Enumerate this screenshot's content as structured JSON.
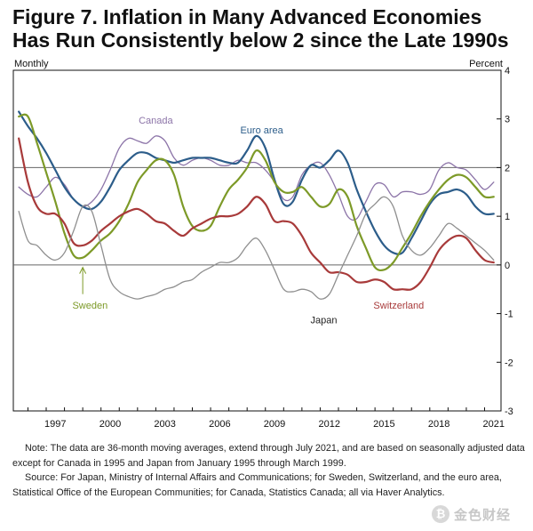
{
  "title_lines": [
    "Figure 7. Inflation in Many Advanced Economies",
    "Has Run Consistently below 2 since the Late 1990s"
  ],
  "chart_data": {
    "type": "line",
    "title": "Figure 7. Inflation in Many Advanced Economies Has Run Consistently below 2 since the Late 1990s",
    "left_unit_label": "Monthly",
    "right_unit_label": "Percent",
    "xlim": [
      1995.2,
      2021.9
    ],
    "ylim": [
      -3,
      4
    ],
    "y_ticks": [
      -3,
      -2,
      -1,
      0,
      1,
      2,
      3,
      4
    ],
    "x_ticks": [
      "1997",
      "2000",
      "2003",
      "2006",
      "2009",
      "2012",
      "2015",
      "2018",
      "2021"
    ],
    "x_tick_values": [
      1997,
      2000,
      2003,
      2006,
      2009,
      2012,
      2015,
      2018,
      2021
    ],
    "reference_lines": [
      2,
      0
    ],
    "series": [
      {
        "name": "Canada",
        "color": "#8c74a8",
        "points": [
          [
            1995.5,
            1.6
          ],
          [
            1996,
            1.45
          ],
          [
            1996.5,
            1.4
          ],
          [
            1997,
            1.6
          ],
          [
            1997.5,
            1.8
          ],
          [
            1998,
            1.65
          ],
          [
            1998.5,
            1.35
          ],
          [
            1999,
            1.2
          ],
          [
            1999.5,
            1.3
          ],
          [
            2000,
            1.55
          ],
          [
            2000.5,
            1.95
          ],
          [
            2001,
            2.4
          ],
          [
            2001.5,
            2.6
          ],
          [
            2002,
            2.55
          ],
          [
            2002.5,
            2.5
          ],
          [
            2003,
            2.65
          ],
          [
            2003.5,
            2.55
          ],
          [
            2004,
            2.2
          ],
          [
            2004.5,
            2.05
          ],
          [
            2005,
            2.15
          ],
          [
            2005.5,
            2.2
          ],
          [
            2006,
            2.15
          ],
          [
            2006.5,
            2.05
          ],
          [
            2007,
            2.05
          ],
          [
            2007.5,
            2.15
          ],
          [
            2008,
            2.1
          ],
          [
            2008.5,
            2.1
          ],
          [
            2009,
            1.95
          ],
          [
            2009.5,
            1.7
          ],
          [
            2010,
            1.35
          ],
          [
            2010.5,
            1.4
          ],
          [
            2011,
            1.85
          ],
          [
            2011.5,
            2.05
          ],
          [
            2012,
            2.1
          ],
          [
            2012.5,
            1.85
          ],
          [
            2013,
            1.45
          ],
          [
            2013.5,
            1.0
          ],
          [
            2014,
            0.95
          ],
          [
            2014.5,
            1.3
          ],
          [
            2015,
            1.65
          ],
          [
            2015.5,
            1.65
          ],
          [
            2016,
            1.4
          ],
          [
            2016.5,
            1.5
          ],
          [
            2017,
            1.5
          ],
          [
            2017.5,
            1.45
          ],
          [
            2018,
            1.55
          ],
          [
            2018.5,
            1.95
          ],
          [
            2019,
            2.1
          ],
          [
            2019.5,
            2.0
          ],
          [
            2020,
            1.95
          ],
          [
            2020.5,
            1.75
          ],
          [
            2021,
            1.55
          ],
          [
            2021.5,
            1.7
          ]
        ]
      },
      {
        "name": "Euro area",
        "color": "#2c5d8a",
        "points": [
          [
            1995.5,
            3.15
          ],
          [
            1996,
            2.85
          ],
          [
            1996.5,
            2.6
          ],
          [
            1997,
            2.3
          ],
          [
            1997.5,
            1.95
          ],
          [
            1998,
            1.6
          ],
          [
            1998.5,
            1.35
          ],
          [
            1999,
            1.2
          ],
          [
            1999.5,
            1.15
          ],
          [
            2000,
            1.3
          ],
          [
            2000.5,
            1.6
          ],
          [
            2001,
            1.95
          ],
          [
            2001.5,
            2.15
          ],
          [
            2002,
            2.3
          ],
          [
            2002.5,
            2.3
          ],
          [
            2003,
            2.2
          ],
          [
            2003.5,
            2.15
          ],
          [
            2004,
            2.1
          ],
          [
            2004.5,
            2.15
          ],
          [
            2005,
            2.2
          ],
          [
            2005.5,
            2.2
          ],
          [
            2006,
            2.2
          ],
          [
            2006.5,
            2.15
          ],
          [
            2007,
            2.1
          ],
          [
            2007.5,
            2.1
          ],
          [
            2008,
            2.35
          ],
          [
            2008.5,
            2.65
          ],
          [
            2009,
            2.4
          ],
          [
            2009.5,
            1.75
          ],
          [
            2010,
            1.25
          ],
          [
            2010.5,
            1.3
          ],
          [
            2011,
            1.75
          ],
          [
            2011.5,
            2.05
          ],
          [
            2012,
            2.0
          ],
          [
            2012.5,
            2.15
          ],
          [
            2013,
            2.35
          ],
          [
            2013.5,
            2.1
          ],
          [
            2014,
            1.55
          ],
          [
            2014.5,
            1.1
          ],
          [
            2015,
            0.7
          ],
          [
            2015.5,
            0.4
          ],
          [
            2016,
            0.25
          ],
          [
            2016.5,
            0.25
          ],
          [
            2017,
            0.55
          ],
          [
            2017.5,
            0.9
          ],
          [
            2018,
            1.25
          ],
          [
            2018.5,
            1.45
          ],
          [
            2019,
            1.5
          ],
          [
            2019.5,
            1.55
          ],
          [
            2020,
            1.45
          ],
          [
            2020.5,
            1.2
          ],
          [
            2021,
            1.05
          ],
          [
            2021.5,
            1.05
          ]
        ]
      },
      {
        "name": "Sweden",
        "color": "#7d9a28",
        "points": [
          [
            1995.5,
            3.05
          ],
          [
            1996,
            3.05
          ],
          [
            1996.5,
            2.5
          ],
          [
            1997,
            1.9
          ],
          [
            1997.5,
            1.3
          ],
          [
            1998,
            0.65
          ],
          [
            1998.5,
            0.2
          ],
          [
            1999,
            0.15
          ],
          [
            1999.5,
            0.3
          ],
          [
            2000,
            0.5
          ],
          [
            2000.5,
            0.65
          ],
          [
            2001,
            0.9
          ],
          [
            2001.5,
            1.25
          ],
          [
            2002,
            1.7
          ],
          [
            2002.5,
            1.95
          ],
          [
            2003,
            2.15
          ],
          [
            2003.5,
            2.15
          ],
          [
            2004,
            1.85
          ],
          [
            2004.5,
            1.2
          ],
          [
            2005,
            0.8
          ],
          [
            2005.5,
            0.7
          ],
          [
            2006,
            0.8
          ],
          [
            2006.5,
            1.2
          ],
          [
            2007,
            1.55
          ],
          [
            2007.5,
            1.75
          ],
          [
            2008,
            2.0
          ],
          [
            2008.5,
            2.35
          ],
          [
            2009,
            2.15
          ],
          [
            2009.5,
            1.7
          ],
          [
            2010,
            1.5
          ],
          [
            2010.5,
            1.5
          ],
          [
            2011,
            1.6
          ],
          [
            2011.5,
            1.4
          ],
          [
            2012,
            1.2
          ],
          [
            2012.5,
            1.25
          ],
          [
            2013,
            1.55
          ],
          [
            2013.5,
            1.4
          ],
          [
            2014,
            0.8
          ],
          [
            2014.5,
            0.35
          ],
          [
            2015,
            -0.05
          ],
          [
            2015.5,
            -0.1
          ],
          [
            2016,
            0.05
          ],
          [
            2016.5,
            0.35
          ],
          [
            2017,
            0.65
          ],
          [
            2017.5,
            1.0
          ],
          [
            2018,
            1.3
          ],
          [
            2018.5,
            1.55
          ],
          [
            2019,
            1.75
          ],
          [
            2019.5,
            1.85
          ],
          [
            2020,
            1.8
          ],
          [
            2020.5,
            1.6
          ],
          [
            2021,
            1.4
          ],
          [
            2021.5,
            1.4
          ]
        ]
      },
      {
        "name": "Switzerland",
        "color": "#a83a3a",
        "points": [
          [
            1995.5,
            2.6
          ],
          [
            1996,
            1.7
          ],
          [
            1996.5,
            1.2
          ],
          [
            1997,
            1.05
          ],
          [
            1997.5,
            1.05
          ],
          [
            1998,
            0.85
          ],
          [
            1998.5,
            0.45
          ],
          [
            1999,
            0.4
          ],
          [
            1999.5,
            0.5
          ],
          [
            2000,
            0.7
          ],
          [
            2000.5,
            0.85
          ],
          [
            2001,
            1.0
          ],
          [
            2001.5,
            1.1
          ],
          [
            2002,
            1.15
          ],
          [
            2002.5,
            1.05
          ],
          [
            2003,
            0.9
          ],
          [
            2003.5,
            0.85
          ],
          [
            2004,
            0.7
          ],
          [
            2004.5,
            0.6
          ],
          [
            2005,
            0.75
          ],
          [
            2005.5,
            0.85
          ],
          [
            2006,
            0.95
          ],
          [
            2006.5,
            1.0
          ],
          [
            2007,
            1.0
          ],
          [
            2007.5,
            1.05
          ],
          [
            2008,
            1.2
          ],
          [
            2008.5,
            1.4
          ],
          [
            2009,
            1.25
          ],
          [
            2009.5,
            0.9
          ],
          [
            2010,
            0.9
          ],
          [
            2010.5,
            0.85
          ],
          [
            2011,
            0.6
          ],
          [
            2011.5,
            0.25
          ],
          [
            2012,
            0.05
          ],
          [
            2012.5,
            -0.15
          ],
          [
            2013,
            -0.15
          ],
          [
            2013.5,
            -0.2
          ],
          [
            2014,
            -0.35
          ],
          [
            2014.5,
            -0.35
          ],
          [
            2015,
            -0.3
          ],
          [
            2015.5,
            -0.35
          ],
          [
            2016,
            -0.5
          ],
          [
            2016.5,
            -0.5
          ],
          [
            2017,
            -0.5
          ],
          [
            2017.5,
            -0.35
          ],
          [
            2018,
            -0.05
          ],
          [
            2018.5,
            0.3
          ],
          [
            2019,
            0.5
          ],
          [
            2019.5,
            0.6
          ],
          [
            2020,
            0.55
          ],
          [
            2020.5,
            0.3
          ],
          [
            2021,
            0.1
          ],
          [
            2021.5,
            0.05
          ]
        ]
      },
      {
        "name": "Japan",
        "color": "#8f8f8f",
        "points": [
          [
            1995.5,
            1.1
          ],
          [
            1996,
            0.5
          ],
          [
            1996.5,
            0.4
          ],
          [
            1997,
            0.2
          ],
          [
            1997.5,
            0.1
          ],
          [
            1998,
            0.25
          ],
          [
            1998.5,
            0.7
          ],
          [
            1999,
            1.2
          ],
          [
            1999.5,
            1.1
          ],
          [
            2000,
            0.4
          ],
          [
            2000.5,
            -0.3
          ],
          [
            2001,
            -0.55
          ],
          [
            2001.5,
            -0.65
          ],
          [
            2002,
            -0.7
          ],
          [
            2002.5,
            -0.65
          ],
          [
            2003,
            -0.6
          ],
          [
            2003.5,
            -0.5
          ],
          [
            2004,
            -0.45
          ],
          [
            2004.5,
            -0.35
          ],
          [
            2005,
            -0.3
          ],
          [
            2005.5,
            -0.15
          ],
          [
            2006,
            -0.05
          ],
          [
            2006.5,
            0.05
          ],
          [
            2007,
            0.05
          ],
          [
            2007.5,
            0.15
          ],
          [
            2008,
            0.4
          ],
          [
            2008.5,
            0.55
          ],
          [
            2009,
            0.3
          ],
          [
            2009.5,
            -0.1
          ],
          [
            2010,
            -0.5
          ],
          [
            2010.5,
            -0.55
          ],
          [
            2011,
            -0.5
          ],
          [
            2011.5,
            -0.55
          ],
          [
            2012,
            -0.7
          ],
          [
            2012.5,
            -0.6
          ],
          [
            2013,
            -0.2
          ],
          [
            2013.5,
            0.2
          ],
          [
            2014,
            0.6
          ],
          [
            2014.5,
            1.05
          ],
          [
            2015,
            1.25
          ],
          [
            2015.5,
            1.4
          ],
          [
            2016,
            1.2
          ],
          [
            2016.5,
            0.6
          ],
          [
            2017,
            0.3
          ],
          [
            2017.5,
            0.2
          ],
          [
            2018,
            0.35
          ],
          [
            2018.5,
            0.6
          ],
          [
            2019,
            0.85
          ],
          [
            2019.5,
            0.75
          ],
          [
            2020,
            0.6
          ],
          [
            2020.5,
            0.45
          ],
          [
            2021,
            0.3
          ],
          [
            2021.5,
            0.1
          ]
        ]
      }
    ],
    "series_labels": [
      {
        "text": "Canada",
        "series": "Canada",
        "x": 2003,
        "y": 2.9
      },
      {
        "text": "Euro area",
        "series": "Euro area",
        "x": 2008.8,
        "y": 2.7
      },
      {
        "text": "Sweden",
        "series": "Sweden",
        "x": 1999.4,
        "y": -0.9
      },
      {
        "text": "Switzerland",
        "series": "Switzerland",
        "x": 2016.3,
        "y": -0.9
      },
      {
        "text": "Japan",
        "series": "Japan",
        "x": 2012.2,
        "y": -1.2
      }
    ],
    "annotation_arrow": {
      "series": "Sweden",
      "from_x": 1999.0,
      "from_y": -0.6,
      "to_x": 1999.0,
      "to_y": -0.05
    }
  },
  "notes": [
    "Note:  The data are 36-month moving averages, extend through July 2021, and are based on seasonally adjusted data except for Canada in 1995 and Japan from January 1995 through March 1999.",
    "Source:  For Japan, Ministry of Internal Affairs and Communications; for Sweden, Switzerland, and the euro area, Statistical Office of the European Communities; for Canada, Statistics Canada; all via Haver Analytics."
  ],
  "watermark": {
    "logo_glyph": "₿",
    "text": "金色财经"
  }
}
